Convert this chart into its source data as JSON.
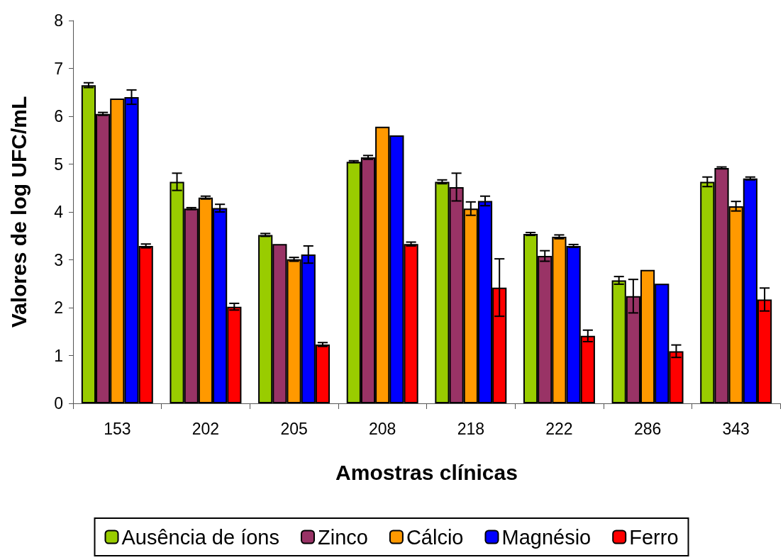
{
  "chart_data": {
    "type": "bar",
    "xlabel": "Amostras clínicas",
    "ylabel": "Valores de log UFC/mL",
    "categories": [
      "153",
      "202",
      "205",
      "208",
      "218",
      "222",
      "286",
      "343"
    ],
    "series": [
      {
        "name": "Ausência de íons",
        "color": "#99cc00",
        "values": [
          6.65,
          4.63,
          3.52,
          5.05,
          4.63,
          3.54,
          2.57,
          4.63
        ],
        "errors": [
          0.05,
          0.18,
          0.03,
          0.02,
          0.04,
          0.03,
          0.08,
          0.1
        ]
      },
      {
        "name": "Zinco",
        "color": "#993366",
        "values": [
          6.05,
          4.07,
          3.33,
          5.14,
          4.52,
          3.08,
          2.24,
          4.92
        ],
        "errors": [
          0.03,
          0.02,
          null,
          0.04,
          0.29,
          0.11,
          0.35,
          0.02
        ]
      },
      {
        "name": "Cálcio",
        "color": "#ff9900",
        "values": [
          6.37,
          4.3,
          3.01,
          5.78,
          4.07,
          3.48,
          2.79,
          4.12
        ],
        "errors": [
          null,
          0.03,
          0.04,
          null,
          0.14,
          0.04,
          null,
          0.1
        ]
      },
      {
        "name": "Magnésio",
        "color": "#0000ff",
        "values": [
          6.4,
          4.08,
          3.11,
          5.6,
          4.23,
          3.29,
          2.5,
          4.7
        ],
        "errors": [
          0.15,
          0.08,
          0.18,
          null,
          0.1,
          0.03,
          null,
          0.03
        ]
      },
      {
        "name": "Ferro",
        "color": "#ff0000",
        "values": [
          3.29,
          2.02,
          1.23,
          3.33,
          2.42,
          1.41,
          1.09,
          2.17
        ],
        "errors": [
          0.04,
          0.07,
          0.04,
          0.04,
          0.6,
          0.12,
          0.13,
          0.24
        ]
      }
    ],
    "ylim": [
      0,
      8
    ],
    "yticks": [
      0,
      1,
      2,
      3,
      4,
      5,
      6,
      7,
      8
    ],
    "grid": false,
    "legend": "bottom"
  }
}
